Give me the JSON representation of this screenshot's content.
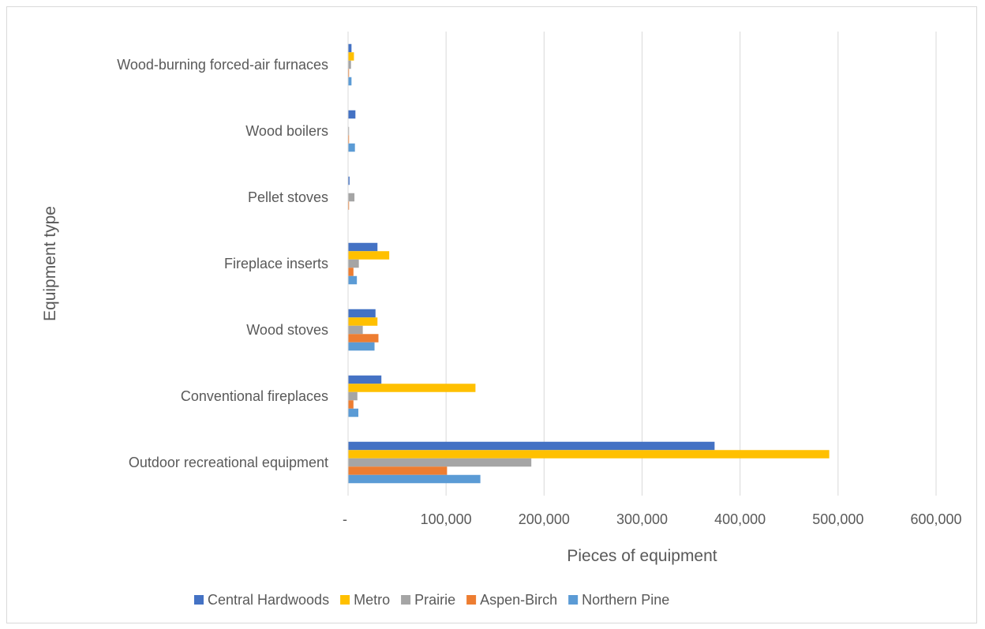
{
  "chart_data": {
    "type": "bar",
    "orientation": "horizontal",
    "title": "",
    "xlabel": "Pieces of equipment",
    "ylabel": "Equipment type",
    "xlim": [
      0,
      600000
    ],
    "x_ticks": [
      0,
      100000,
      200000,
      300000,
      400000,
      500000,
      600000
    ],
    "x_tick_labels": [
      "-",
      "100,000",
      "200,000",
      "300,000",
      "400,000",
      "500,000",
      "600,000"
    ],
    "categories": [
      "Wood-burning forced-air furnaces",
      "Wood boilers",
      "Pellet stoves",
      "Fireplace inserts",
      "Wood stoves",
      "Conventional fireplaces",
      "Outdoor recreational equipment"
    ],
    "series": [
      {
        "name": "Central Hardwoods",
        "color": "#4472C4",
        "values": [
          3500,
          7500,
          1500,
          30000,
          28000,
          34000,
          374000
        ]
      },
      {
        "name": "Metro",
        "color": "#FFC000",
        "values": [
          6000,
          0,
          0,
          42000,
          30000,
          130000,
          491000
        ]
      },
      {
        "name": "Prairie",
        "color": "#A5A5A5",
        "values": [
          3000,
          1000,
          6500,
          11000,
          15000,
          9500,
          187000
        ]
      },
      {
        "name": "Aspen-Birch",
        "color": "#ED7D31",
        "values": [
          1000,
          1000,
          1000,
          5500,
          31000,
          5500,
          101000
        ]
      },
      {
        "name": "Northern Pine",
        "color": "#5B9BD5",
        "values": [
          3500,
          7000,
          0,
          9000,
          27000,
          10500,
          135000
        ]
      }
    ],
    "gridlines": true,
    "legend_position": "bottom"
  }
}
